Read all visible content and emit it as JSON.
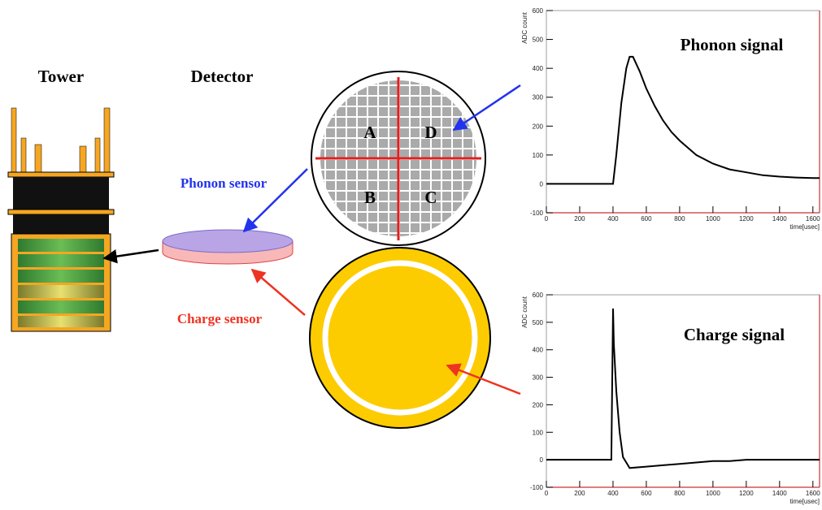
{
  "diagram": {
    "tower_label": "Tower",
    "detector_label": "Detector",
    "phonon_sensor": "Phonon sensor",
    "charge_sensor": "Charge sensor",
    "quadrants": [
      "A",
      "D",
      "B",
      "C"
    ]
  },
  "chart_data": [
    {
      "type": "line",
      "title": "Phonon signal",
      "xlabel": "time[usec]",
      "ylabel": "ADC count",
      "color": "#000000",
      "x": [
        0,
        100,
        200,
        300,
        400,
        420,
        450,
        480,
        500,
        520,
        560,
        600,
        650,
        700,
        750,
        800,
        900,
        1000,
        1100,
        1200,
        1300,
        1400,
        1500,
        1600,
        1640
      ],
      "values": [
        0,
        0,
        0,
        0,
        0,
        100,
        280,
        400,
        440,
        440,
        390,
        330,
        270,
        220,
        180,
        150,
        100,
        70,
        50,
        40,
        30,
        25,
        22,
        20,
        20
      ],
      "xlim": [
        0,
        1640
      ],
      "ylim": [
        -100,
        600
      ],
      "xticks": [
        0,
        200,
        400,
        600,
        800,
        1000,
        1200,
        1400,
        1600
      ],
      "yticks": [
        -100,
        0,
        100,
        200,
        300,
        400,
        500,
        600
      ]
    },
    {
      "type": "line",
      "title": "Charge signal",
      "xlabel": "time[usec]",
      "ylabel": "ADC count",
      "color": "#000000",
      "x": [
        0,
        100,
        200,
        300,
        390,
        400,
        405,
        420,
        440,
        460,
        500,
        600,
        700,
        800,
        900,
        1000,
        1100,
        1200,
        1300,
        1400,
        1500,
        1600,
        1640
      ],
      "values": [
        0,
        0,
        0,
        0,
        0,
        550,
        420,
        250,
        100,
        10,
        -30,
        -25,
        -20,
        -15,
        -10,
        -5,
        -5,
        0,
        0,
        0,
        0,
        0,
        0
      ],
      "xlim": [
        0,
        1640
      ],
      "ylim": [
        -100,
        600
      ],
      "xticks": [
        0,
        200,
        400,
        600,
        800,
        1000,
        1200,
        1400,
        1600
      ],
      "yticks": [
        -100,
        0,
        100,
        200,
        300,
        400,
        500,
        600
      ]
    }
  ]
}
